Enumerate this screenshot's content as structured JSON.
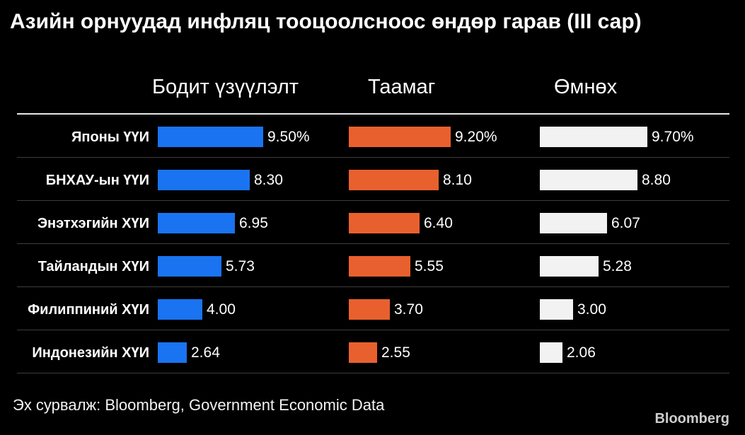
{
  "title": "Азийн орнуудад инфляц тооцоолсноос өндөр гарав (III сар)",
  "columns": [
    "Бодит үзүүлэлт",
    "Таамаг",
    "Өмнөх"
  ],
  "source": "Эх сурвалж: Bloomberg, Government Economic Data",
  "brand": "Bloomberg",
  "colors": {
    "actual": "#1a73f0",
    "forecast": "#e9602f",
    "previous": "#f2f2f2",
    "background": "#000000"
  },
  "chart_data": {
    "type": "bar",
    "orientation": "horizontal",
    "title": "Азийн орнуудад инфляц тооцоолсноос өндөр гарав (III сар)",
    "categories": [
      "Японы ҮҮИ",
      "БНХАУ-ын ҮҮИ",
      "Энэтхэгийн ХҮИ",
      "Тайландын ХҮИ",
      "Филиппиний ХҮИ",
      "Индонезийн ХҮИ"
    ],
    "series": [
      {
        "name": "Бодит үзүүлэлт",
        "values": [
          9.5,
          8.3,
          6.95,
          5.73,
          4.0,
          2.64
        ],
        "labels": [
          "9.50%",
          "8.30",
          "6.95",
          "5.73",
          "4.00",
          "2.64"
        ]
      },
      {
        "name": "Таамаг",
        "values": [
          9.2,
          8.1,
          6.4,
          5.55,
          3.7,
          2.55
        ],
        "labels": [
          "9.20%",
          "8.10",
          "6.40",
          "5.55",
          "3.70",
          "2.55"
        ]
      },
      {
        "name": "Өмнөх",
        "values": [
          9.7,
          8.8,
          6.07,
          5.28,
          3.0,
          2.06
        ],
        "labels": [
          "9.70%",
          "8.80",
          "6.07",
          "5.28",
          "3.00",
          "2.06"
        ]
      }
    ],
    "grid": false,
    "legend": "none"
  }
}
